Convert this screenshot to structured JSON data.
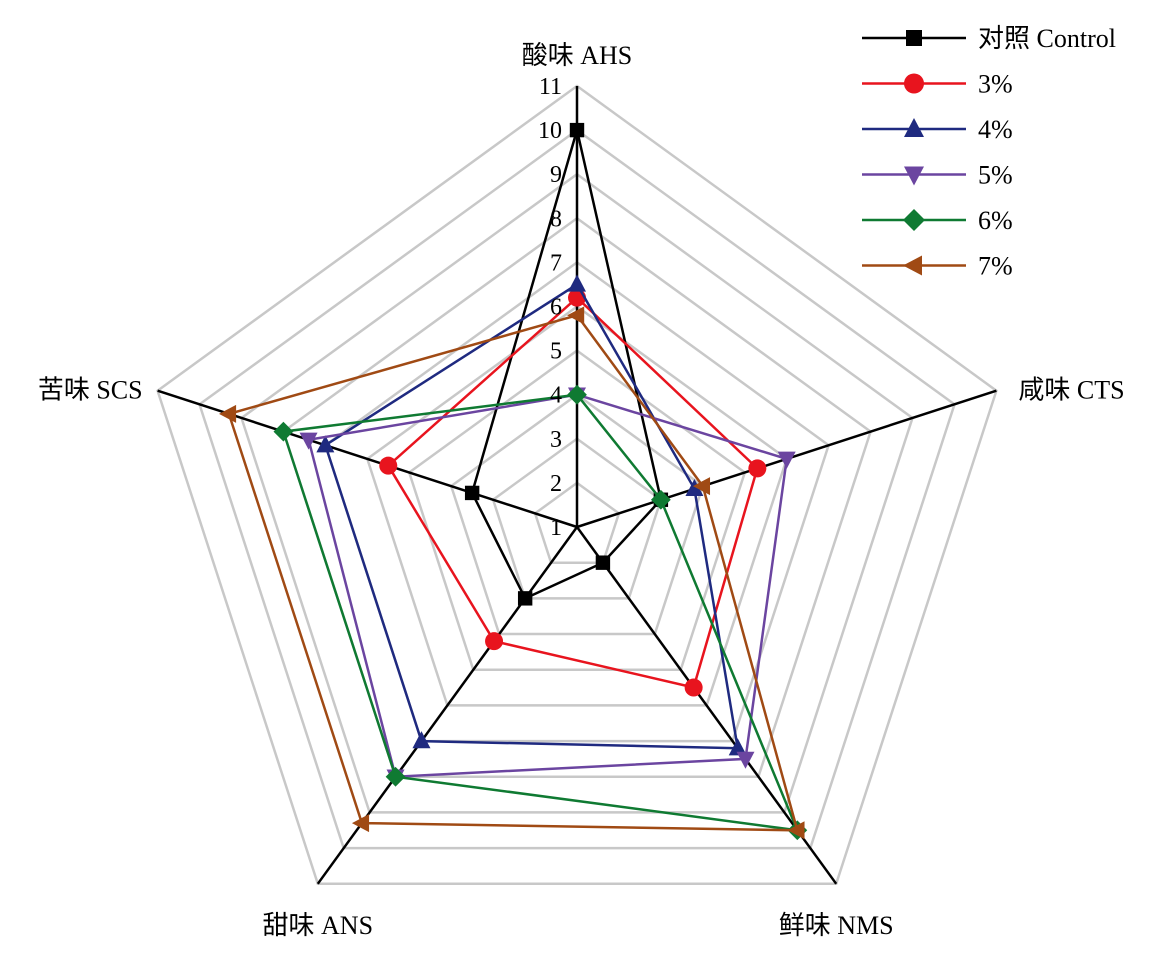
{
  "chart_data": {
    "type": "radar",
    "axes": [
      "酸味 AHS",
      "咸味 CTS",
      "鲜味 NMS",
      "甜味 ANS",
      "苦味 SCS"
    ],
    "rlim": [
      1,
      11
    ],
    "ticks": [
      "1",
      "2",
      "3",
      "4",
      "5",
      "6",
      "7",
      "8",
      "9",
      "10",
      "11"
    ],
    "grid": true,
    "legend_position": "top-right",
    "series": [
      {
        "name": "对照 Control",
        "color": "#000000",
        "marker": "square",
        "values": [
          10.0,
          3.0,
          2.0,
          3.0,
          3.5
        ]
      },
      {
        "name": "3%",
        "color": "#e8141e",
        "marker": "circle",
        "values": [
          6.2,
          5.3,
          5.5,
          4.2,
          5.5
        ]
      },
      {
        "name": "4%",
        "color": "#1f2a80",
        "marker": "triangle-up",
        "values": [
          6.5,
          3.8,
          7.2,
          7.0,
          7.0
        ]
      },
      {
        "name": "5%",
        "color": "#6b45a0",
        "marker": "triangle-down",
        "values": [
          4.0,
          6.0,
          7.5,
          8.0,
          7.4
        ]
      },
      {
        "name": "6%",
        "color": "#0f7a32",
        "marker": "diamond",
        "values": [
          4.0,
          3.0,
          9.5,
          8.0,
          8.0
        ]
      },
      {
        "name": "7%",
        "color": "#a04a14",
        "marker": "triangle-left",
        "values": [
          5.8,
          4.0,
          9.5,
          9.3,
          9.3
        ]
      }
    ]
  }
}
